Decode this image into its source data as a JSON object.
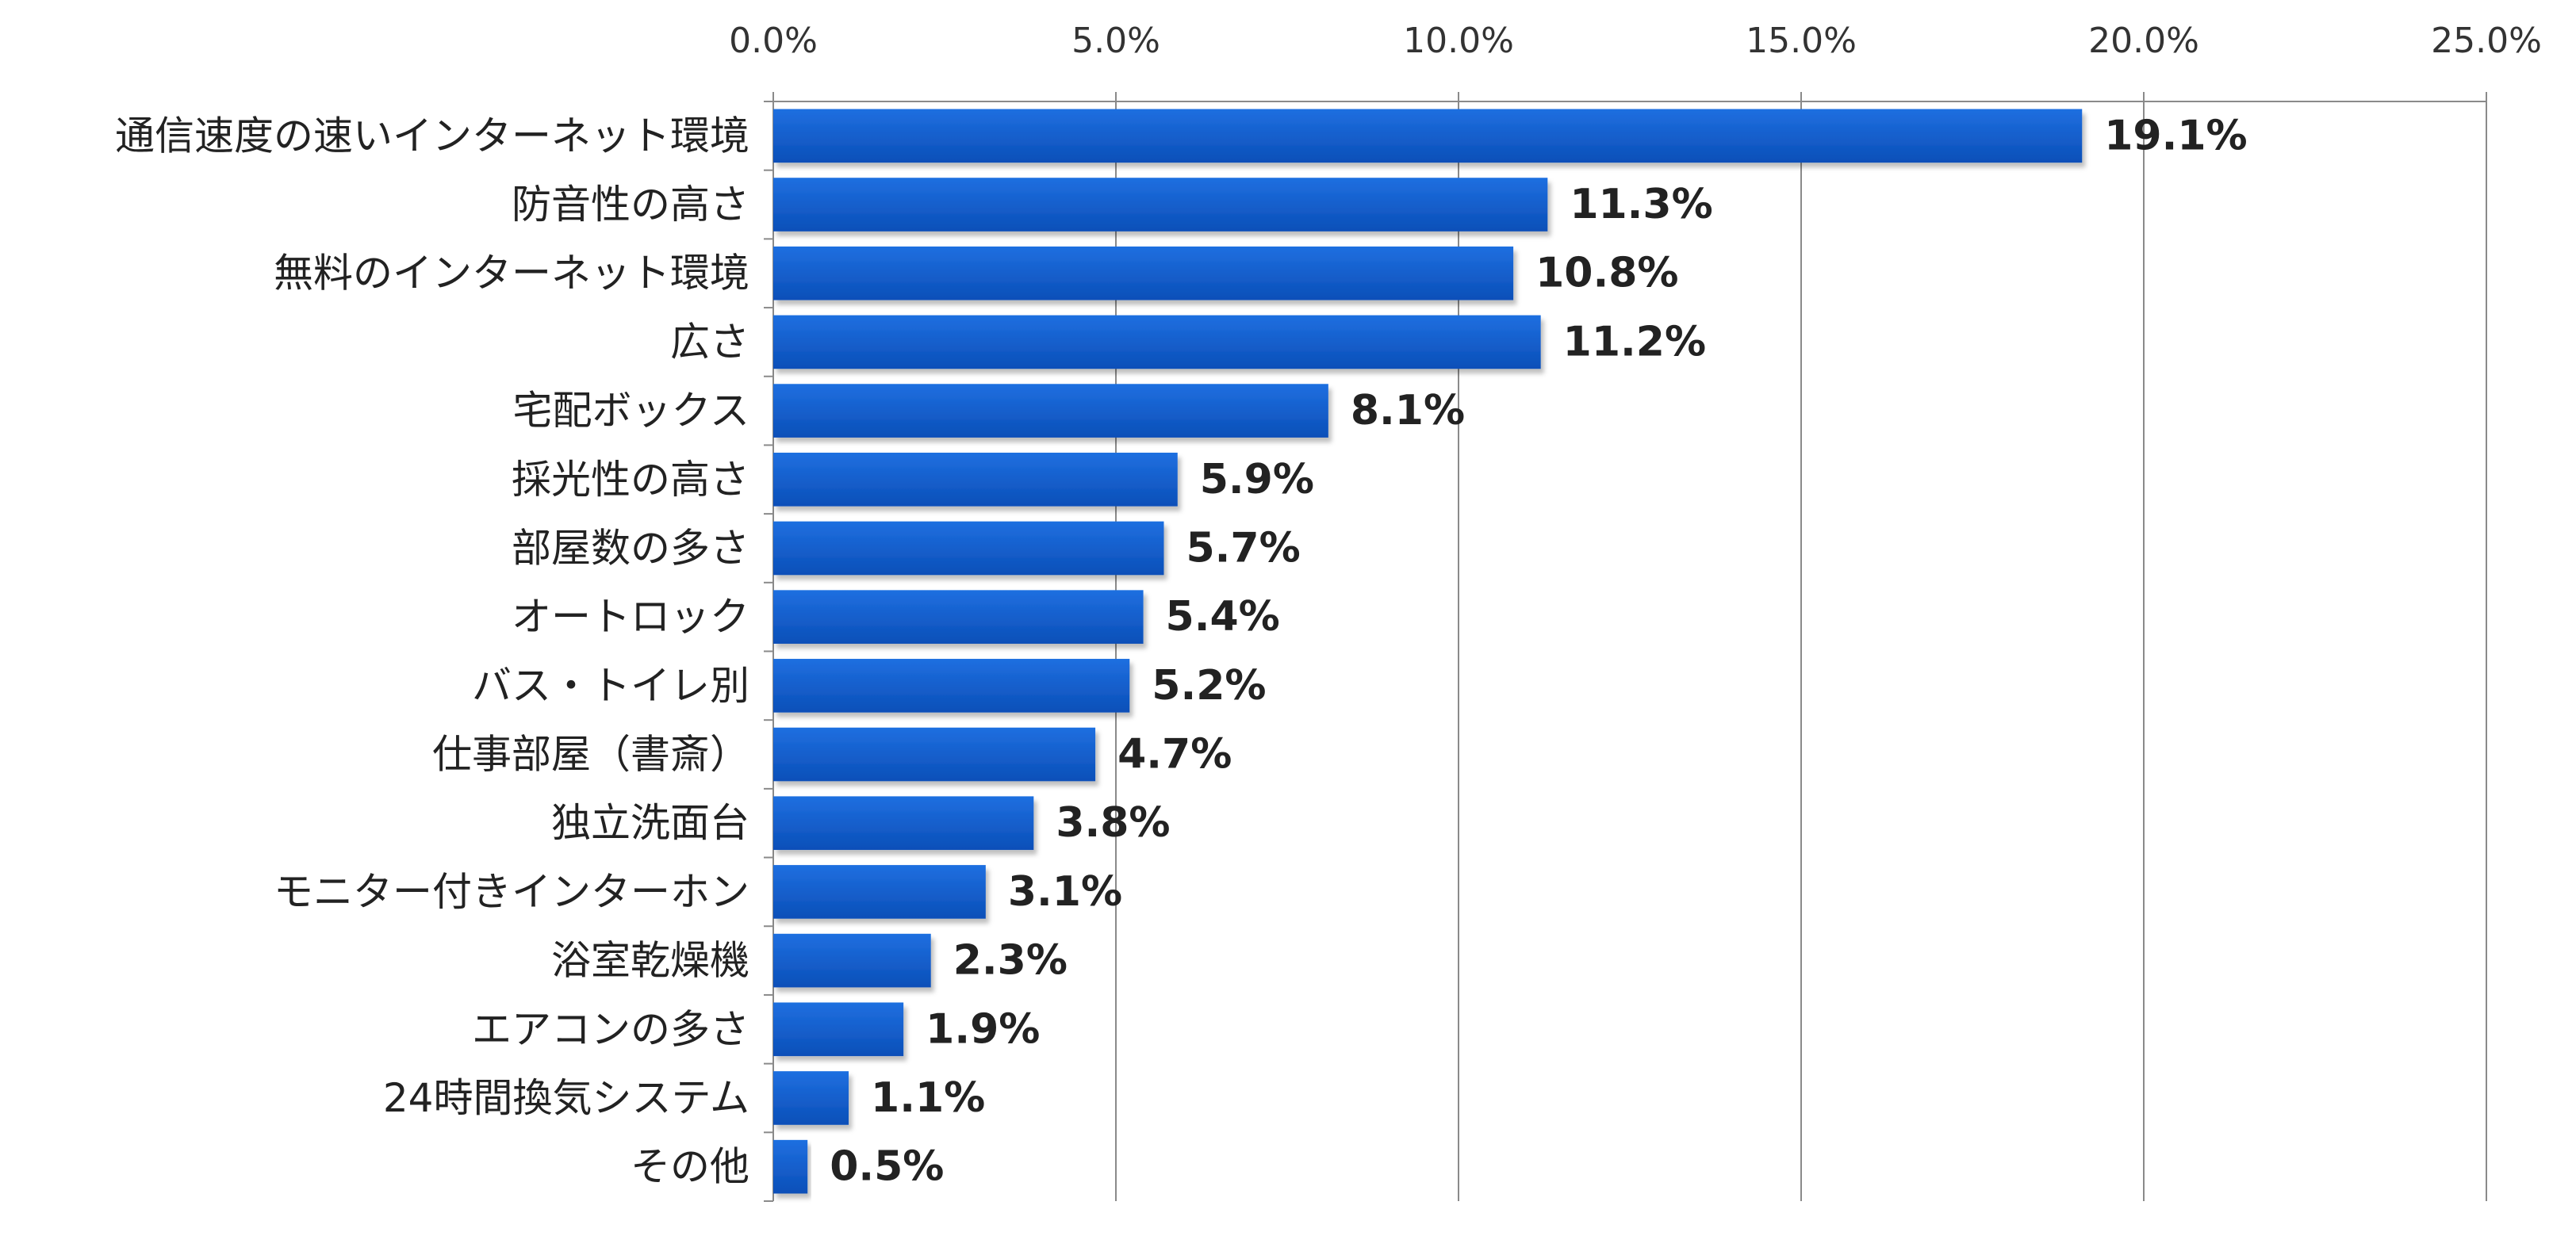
{
  "chart_data": {
    "type": "bar",
    "orientation": "horizontal",
    "categories": [
      "通信速度の速いインターネット環境",
      "防音性の高さ",
      "無料のインターネット環境",
      "広さ",
      "宅配ボックス",
      "採光性の高さ",
      "部屋数の多さ",
      "オートロック",
      "バス・トイレ別",
      "仕事部屋（書斎）",
      "独立洗面台",
      "モニター付きインターホン",
      "浴室乾燥機",
      "エアコンの多さ",
      "24時間換気システム",
      "その他"
    ],
    "values": [
      19.1,
      11.3,
      10.8,
      11.2,
      8.1,
      5.9,
      5.7,
      5.4,
      5.2,
      4.7,
      3.8,
      3.1,
      2.3,
      1.9,
      1.1,
      0.5
    ],
    "data_labels": [
      "19.1%",
      "11.3%",
      "10.8%",
      "11.2%",
      "8.1%",
      "5.9%",
      "5.7%",
      "5.4%",
      "5.2%",
      "4.7%",
      "3.8%",
      "3.1%",
      "2.3%",
      "1.9%",
      "1.1%",
      "0.5%"
    ],
    "xlim": [
      0,
      25
    ],
    "x_ticks": [
      0,
      5,
      10,
      15,
      20,
      25
    ],
    "x_tick_labels": [
      "0.0%",
      "5.0%",
      "10.0%",
      "15.0%",
      "20.0%",
      "25.0%"
    ],
    "x_axis_position": "top",
    "grid": true,
    "legend": "none",
    "title": "",
    "xlabel": "",
    "ylabel": "",
    "colors": {
      "bar_top": "#1f6fe0",
      "bar_bottom": "#0b4fb8",
      "grid": "#8a8a8a"
    }
  }
}
